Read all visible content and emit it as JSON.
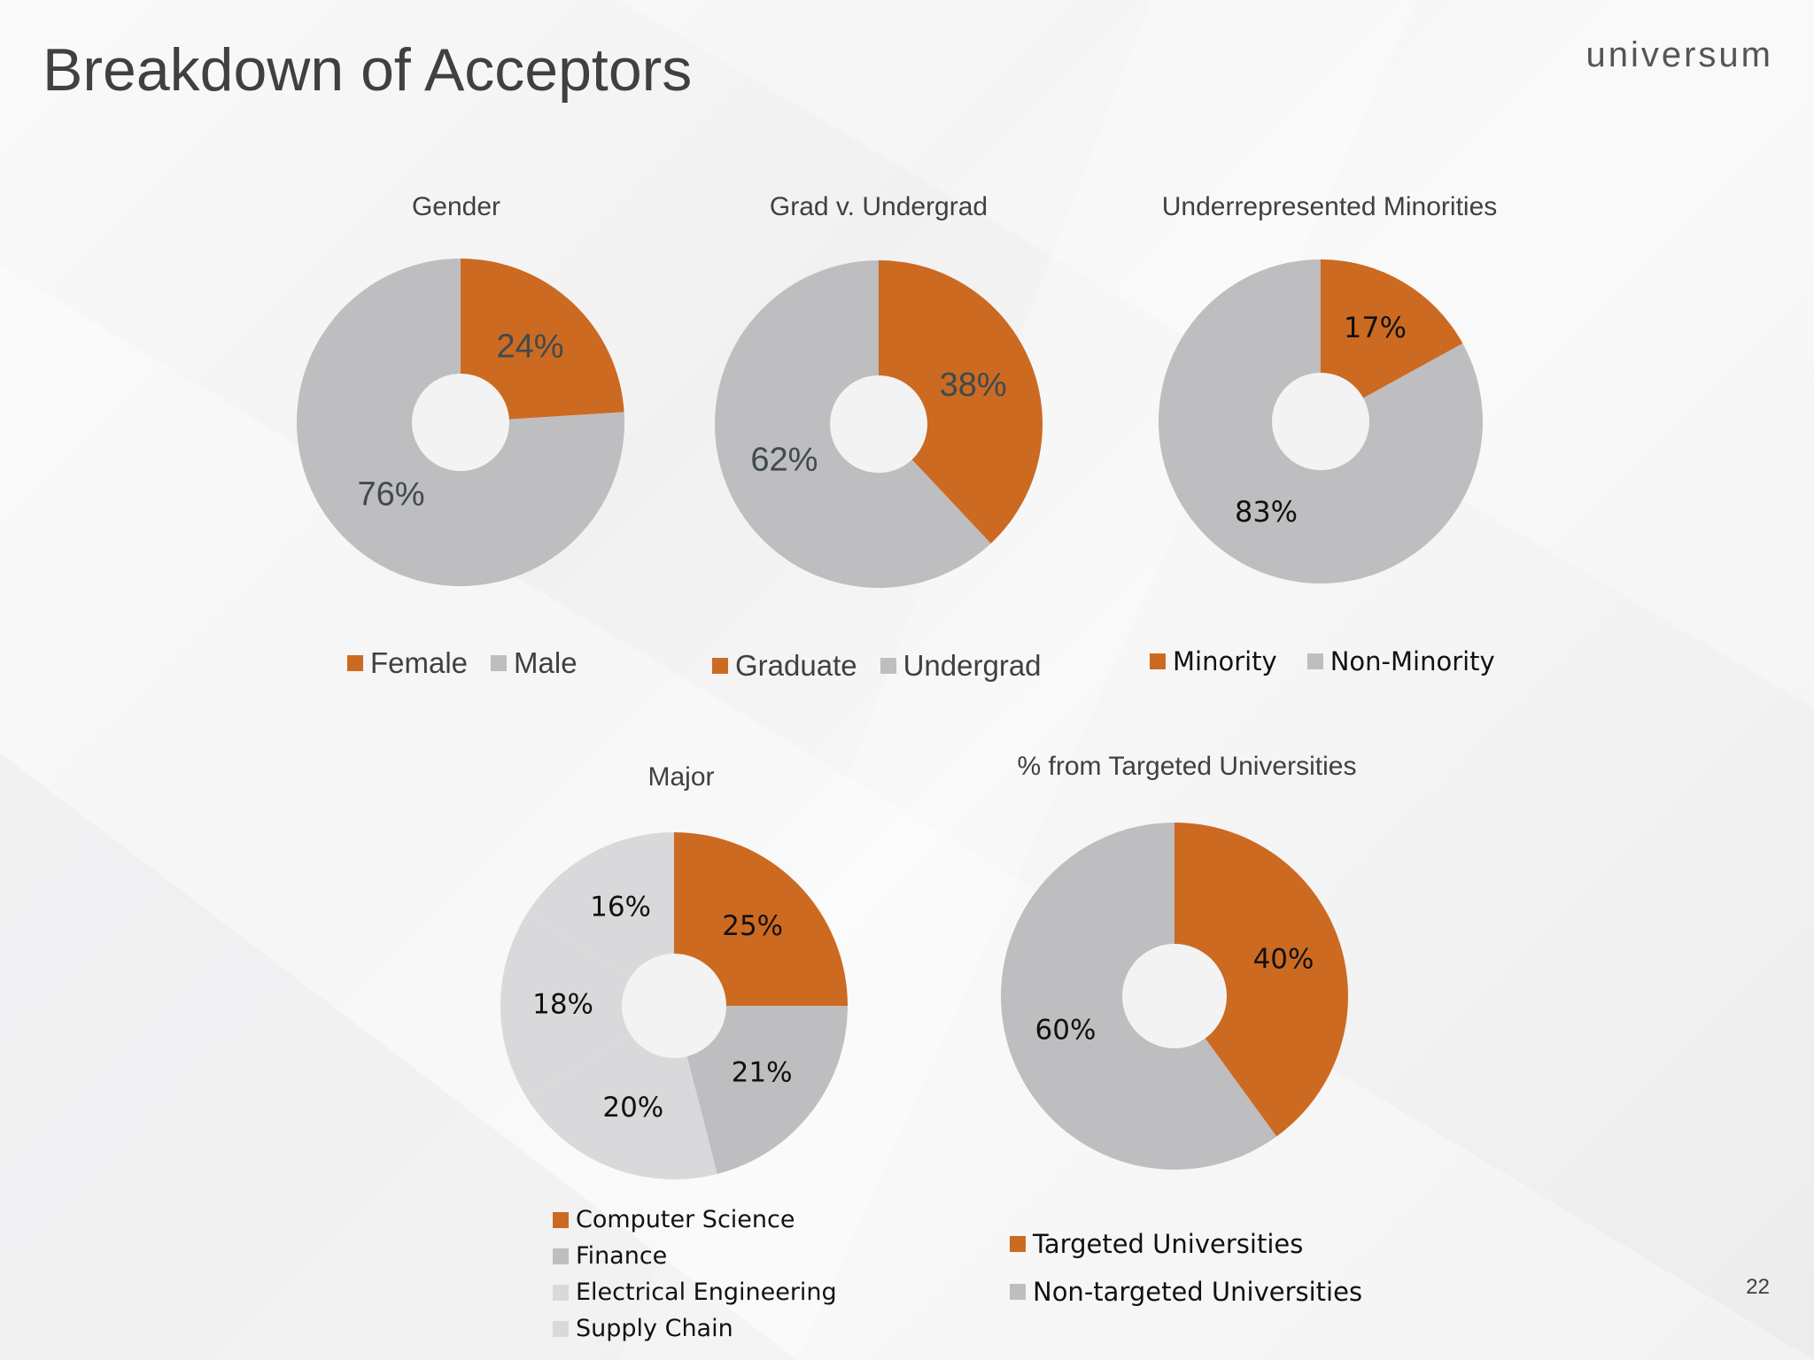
{
  "slide": {
    "title": "Breakdown of Acceptors",
    "brand": "universum",
    "page_number": "22"
  },
  "colors": {
    "accent": "#cc6a22",
    "gray_dark": "#bebdc0",
    "gray_light": "#d9d8da",
    "label_dark": "#3f4a4f"
  },
  "chart_data": [
    {
      "id": "gender",
      "type": "pie",
      "title": "Gender",
      "categories": [
        "Female",
        "Male"
      ],
      "values": [
        24,
        76
      ],
      "labels": [
        "24%",
        "76%"
      ],
      "colors": [
        "#cc6a22",
        "#bebdc0"
      ],
      "legend_placement": "bottom"
    },
    {
      "id": "grad",
      "type": "pie",
      "title": "Grad v. Undergrad",
      "categories": [
        "Graduate",
        "Undergrad"
      ],
      "values": [
        38,
        62
      ],
      "labels": [
        "38%",
        "62%"
      ],
      "colors": [
        "#cc6a22",
        "#bebdc0"
      ],
      "legend_placement": "bottom"
    },
    {
      "id": "minorities",
      "type": "pie",
      "title": "Underrepresented Minorities",
      "categories": [
        "Minority",
        "Non-Minority"
      ],
      "values": [
        17,
        83
      ],
      "labels": [
        "17%",
        "83%"
      ],
      "colors": [
        "#cc6a22",
        "#bebdc0"
      ],
      "legend_placement": "bottom"
    },
    {
      "id": "major",
      "type": "pie",
      "title": "Major",
      "categories": [
        "Computer Science",
        "Finance",
        "Electrical Engineering",
        "Supply Chain"
      ],
      "values": [
        25,
        21,
        20,
        18,
        16
      ],
      "labels": [
        "25%",
        "21%",
        "20%",
        "18%",
        "16%"
      ],
      "colors": [
        "#cc6a22",
        "#bebdc0",
        "#d9d8da",
        "#d9d8da",
        "#d9d8da"
      ],
      "legend_colors": [
        "#cc6a22",
        "#bebdc0",
        "#d9d8da",
        "#d9d8da"
      ],
      "legend_placement": "bottom"
    },
    {
      "id": "targeted",
      "type": "pie",
      "title": "% from Targeted Universities",
      "categories": [
        "Targeted Universities",
        "Non-targeted Universities"
      ],
      "values": [
        40,
        60
      ],
      "labels": [
        "40%",
        "60%"
      ],
      "colors": [
        "#cc6a22",
        "#bebdc0"
      ],
      "legend_placement": "bottom"
    }
  ]
}
